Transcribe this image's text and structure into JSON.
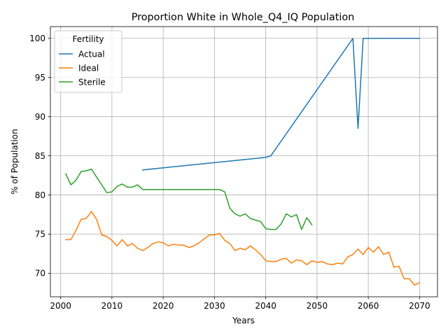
{
  "chart_data": {
    "type": "line",
    "title": "Proportion White in Whole_Q4_IQ Population",
    "xlabel": "Years",
    "ylabel": "% of Population",
    "xlim": [
      1998,
      2073.5
    ],
    "ylim": [
      67,
      101.5
    ],
    "xticks": [
      2000,
      2010,
      2020,
      2030,
      2040,
      2050,
      2060,
      2070
    ],
    "yticks": [
      70,
      75,
      80,
      85,
      90,
      95,
      100
    ],
    "grid": true,
    "legend": {
      "title": "Fertility",
      "position": "upper-left"
    },
    "series": [
      {
        "name": "Actual",
        "color": "#1f77b4",
        "x": [
          2016,
          2040,
          2041,
          2057,
          2058,
          2059,
          2070
        ],
        "y": [
          83.2,
          84.8,
          85.0,
          100.0,
          88.5,
          100.0,
          100.0
        ]
      },
      {
        "name": "Ideal",
        "color": "#ff7f0e",
        "x": [
          2001,
          2002,
          2003,
          2004,
          2005,
          2006,
          2007,
          2008,
          2009,
          2010,
          2011,
          2012,
          2013,
          2014,
          2015,
          2016,
          2017,
          2018,
          2019,
          2020,
          2021,
          2022,
          2023,
          2024,
          2025,
          2026,
          2027,
          2028,
          2029,
          2030,
          2031,
          2032,
          2033,
          2034,
          2035,
          2036,
          2037,
          2038,
          2039,
          2040,
          2041,
          2042,
          2043,
          2044,
          2045,
          2046,
          2047,
          2048,
          2049,
          2050,
          2051,
          2052,
          2053,
          2054,
          2055,
          2056,
          2057,
          2058,
          2059,
          2060,
          2061,
          2062,
          2063,
          2064,
          2065,
          2066,
          2067,
          2068,
          2069,
          2070
        ],
        "y": [
          74.3,
          74.3,
          75.5,
          76.9,
          77.0,
          77.9,
          76.9,
          74.9,
          74.7,
          74.2,
          73.5,
          74.3,
          73.5,
          73.8,
          73.2,
          72.9,
          73.3,
          73.8,
          74.0,
          73.9,
          73.5,
          73.7,
          73.6,
          73.6,
          73.3,
          73.5,
          73.9,
          74.4,
          74.9,
          74.9,
          75.1,
          74.2,
          73.8,
          72.9,
          73.2,
          73.0,
          73.5,
          73.0,
          72.4,
          71.6,
          71.5,
          71.5,
          71.8,
          71.9,
          71.3,
          71.7,
          71.6,
          71.1,
          71.6,
          71.4,
          71.5,
          71.2,
          71.1,
          71.3,
          71.2,
          72.1,
          72.4,
          73.1,
          72.4,
          73.3,
          72.7,
          73.4,
          72.4,
          72.7,
          70.8,
          70.9,
          69.3,
          69.3,
          68.5,
          68.8
        ]
      },
      {
        "name": "Sterile",
        "color": "#2ca02c",
        "x": [
          2001,
          2002,
          2003,
          2004,
          2005,
          2006,
          2007,
          2008,
          2009,
          2010,
          2011,
          2012,
          2013,
          2014,
          2015,
          2016,
          2017,
          2018,
          2019,
          2020,
          2021,
          2022,
          2023,
          2024,
          2025,
          2026,
          2027,
          2028,
          2029,
          2030,
          2031,
          2032,
          2033,
          2034,
          2035,
          2036,
          2037,
          2038,
          2039,
          2040,
          2041,
          2042,
          2043,
          2044,
          2045,
          2046,
          2047,
          2048,
          2049
        ],
        "y": [
          82.7,
          81.3,
          81.9,
          83.0,
          83.1,
          83.3,
          82.3,
          81.3,
          80.3,
          80.4,
          81.1,
          81.4,
          81.0,
          81.0,
          81.3,
          80.7,
          80.7,
          80.7,
          80.7,
          80.7,
          80.7,
          80.7,
          80.7,
          80.7,
          80.7,
          80.7,
          80.7,
          80.7,
          80.7,
          80.7,
          80.7,
          80.4,
          78.3,
          77.6,
          77.3,
          77.6,
          77.0,
          76.8,
          76.6,
          75.7,
          75.6,
          75.6,
          76.3,
          77.6,
          77.2,
          77.5,
          75.6,
          77.1,
          76.2
        ]
      }
    ]
  }
}
